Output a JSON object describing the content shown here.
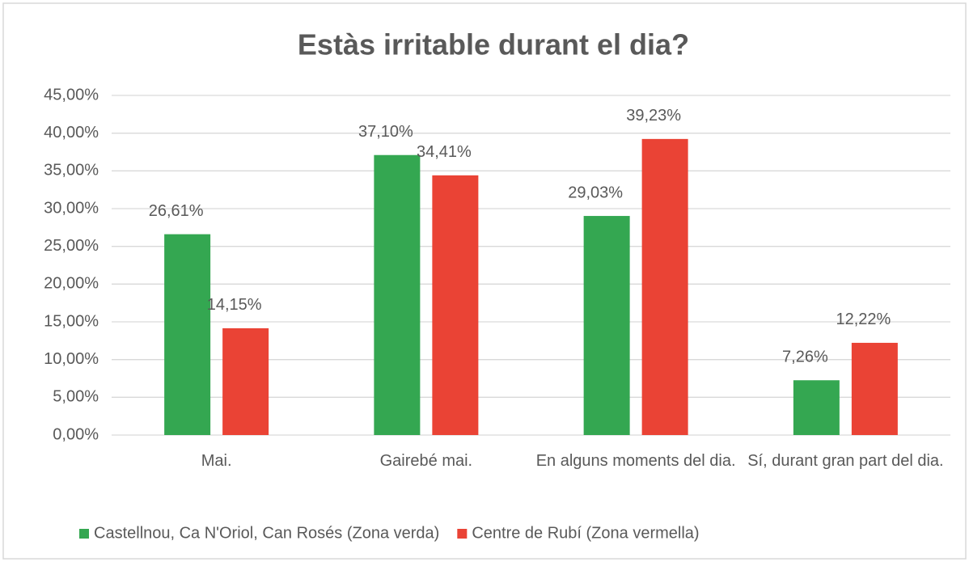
{
  "chart_data": {
    "type": "bar",
    "title": "Estàs irritable durant el dia?",
    "categories": [
      "Mai.",
      "Gairebé mai.",
      "En alguns moments del dia.",
      "Sí, durant gran part del dia."
    ],
    "series": [
      {
        "name": "Castellnou, Ca N'Oriol, Can Rosés (Zona verda)",
        "color": "#34a751",
        "values": [
          26.61,
          37.1,
          29.03,
          7.26
        ],
        "value_labels": [
          "26,61%",
          "37,10%",
          "29,03%",
          "7,26%"
        ]
      },
      {
        "name": "Centre de Rubí (Zona vermella)",
        "color": "#ea4335",
        "values": [
          14.15,
          34.41,
          39.23,
          12.22
        ],
        "value_labels": [
          "14,15%",
          "34,41%",
          "39,23%",
          "12,22%"
        ]
      }
    ],
    "ylim": [
      0,
      45
    ],
    "yticks": [
      {
        "value": 0,
        "label": "0,00%"
      },
      {
        "value": 5,
        "label": "5,00%"
      },
      {
        "value": 10,
        "label": "10,00%"
      },
      {
        "value": 15,
        "label": "15,00%"
      },
      {
        "value": 20,
        "label": "20,00%"
      },
      {
        "value": 25,
        "label": "25,00%"
      },
      {
        "value": 30,
        "label": "30,00%"
      },
      {
        "value": 35,
        "label": "35,00%"
      },
      {
        "value": 40,
        "label": "40,00%"
      },
      {
        "value": 45,
        "label": "45,00%"
      }
    ],
    "grid": true,
    "legend": "bottom"
  }
}
